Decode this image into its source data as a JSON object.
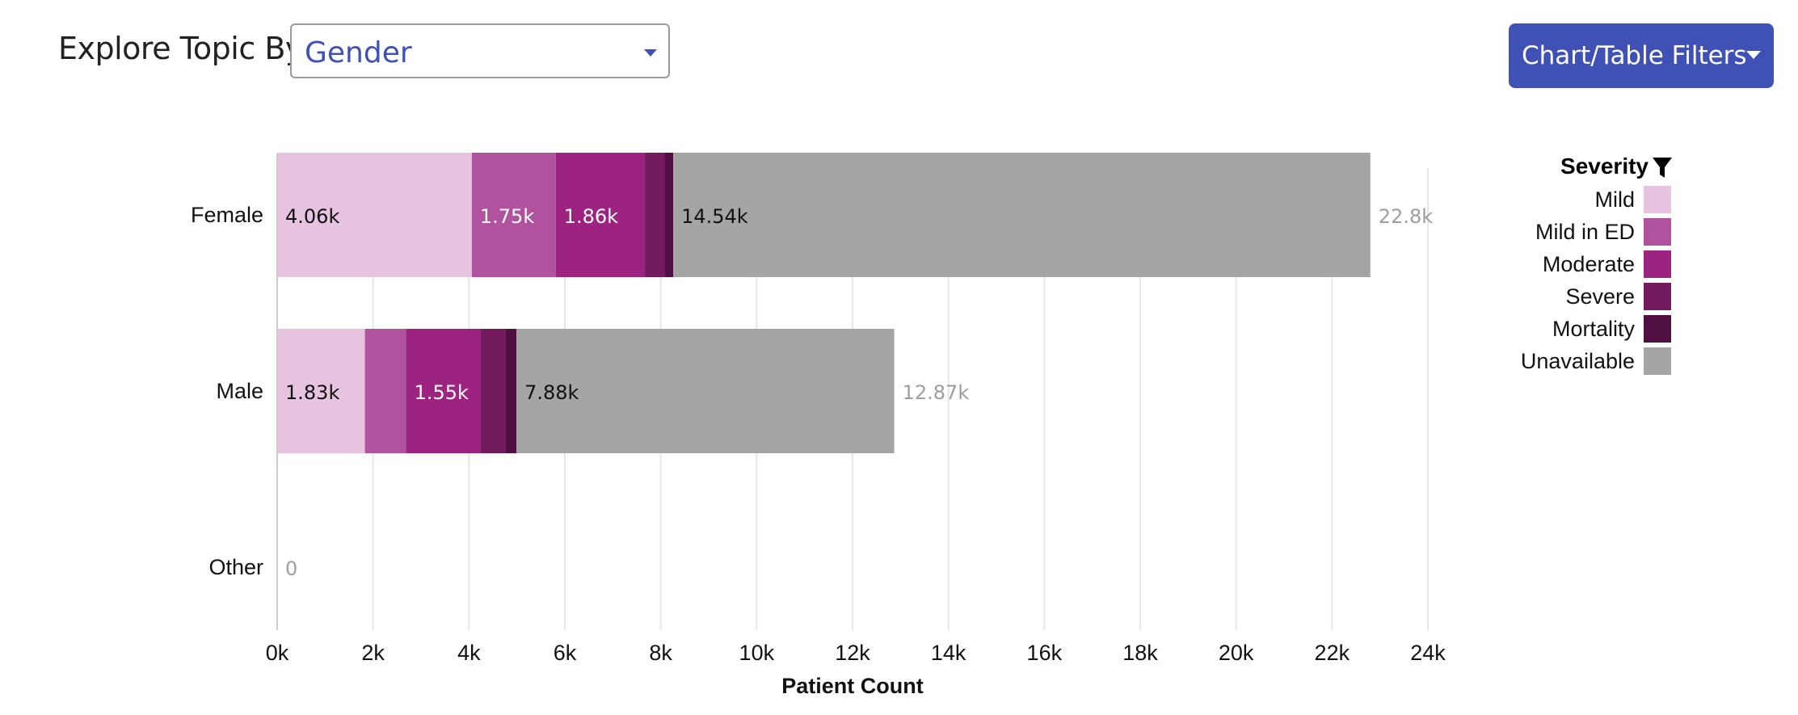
{
  "header": {
    "explore_label": "Explore Topic By",
    "select_value": "Gender",
    "filters_button": "Chart/Table Filters"
  },
  "legend": {
    "title": "Severity",
    "items": [
      {
        "label": "Mild",
        "color": "#e6c3df"
      },
      {
        "label": "Mild in ED",
        "color": "#b0529e"
      },
      {
        "label": "Moderate",
        "color": "#9c2480"
      },
      {
        "label": "Severe",
        "color": "#731b5e"
      },
      {
        "label": "Mortality",
        "color": "#4f0f40"
      },
      {
        "label": "Unavailable",
        "color": "#a5a5a5"
      }
    ]
  },
  "chart_data": {
    "type": "bar",
    "orientation": "horizontal",
    "stacked": true,
    "categories": [
      "Female",
      "Male",
      "Other"
    ],
    "series": [
      {
        "name": "Mild",
        "values": [
          4060,
          1830,
          0
        ]
      },
      {
        "name": "Mild in ED",
        "values": [
          1750,
          860,
          0
        ]
      },
      {
        "name": "Moderate",
        "values": [
          1860,
          1550,
          0
        ]
      },
      {
        "name": "Severe",
        "values": [
          420,
          520,
          0
        ]
      },
      {
        "name": "Mortality",
        "values": [
          170,
          230,
          0
        ]
      },
      {
        "name": "Unavailable",
        "values": [
          14540,
          7880,
          0
        ]
      }
    ],
    "data_labels": [
      [
        "4.06k",
        "1.75k",
        "1.86k",
        "",
        "",
        "14.54k"
      ],
      [
        "1.83k",
        "",
        "1.55k",
        "",
        "",
        "7.88k"
      ],
      [
        "",
        "",
        "",
        "",
        "",
        ""
      ]
    ],
    "totals": [
      22800,
      12870,
      0
    ],
    "total_labels": [
      "22.8k",
      "12.87k",
      "0"
    ],
    "xlabel": "Patient Count",
    "xlim": [
      0,
      24000
    ],
    "x_ticks": [
      "0k",
      "2k",
      "4k",
      "6k",
      "8k",
      "10k",
      "12k",
      "14k",
      "16k",
      "18k",
      "20k",
      "22k",
      "24k"
    ],
    "grid": "vertical",
    "legend_position": "right"
  }
}
